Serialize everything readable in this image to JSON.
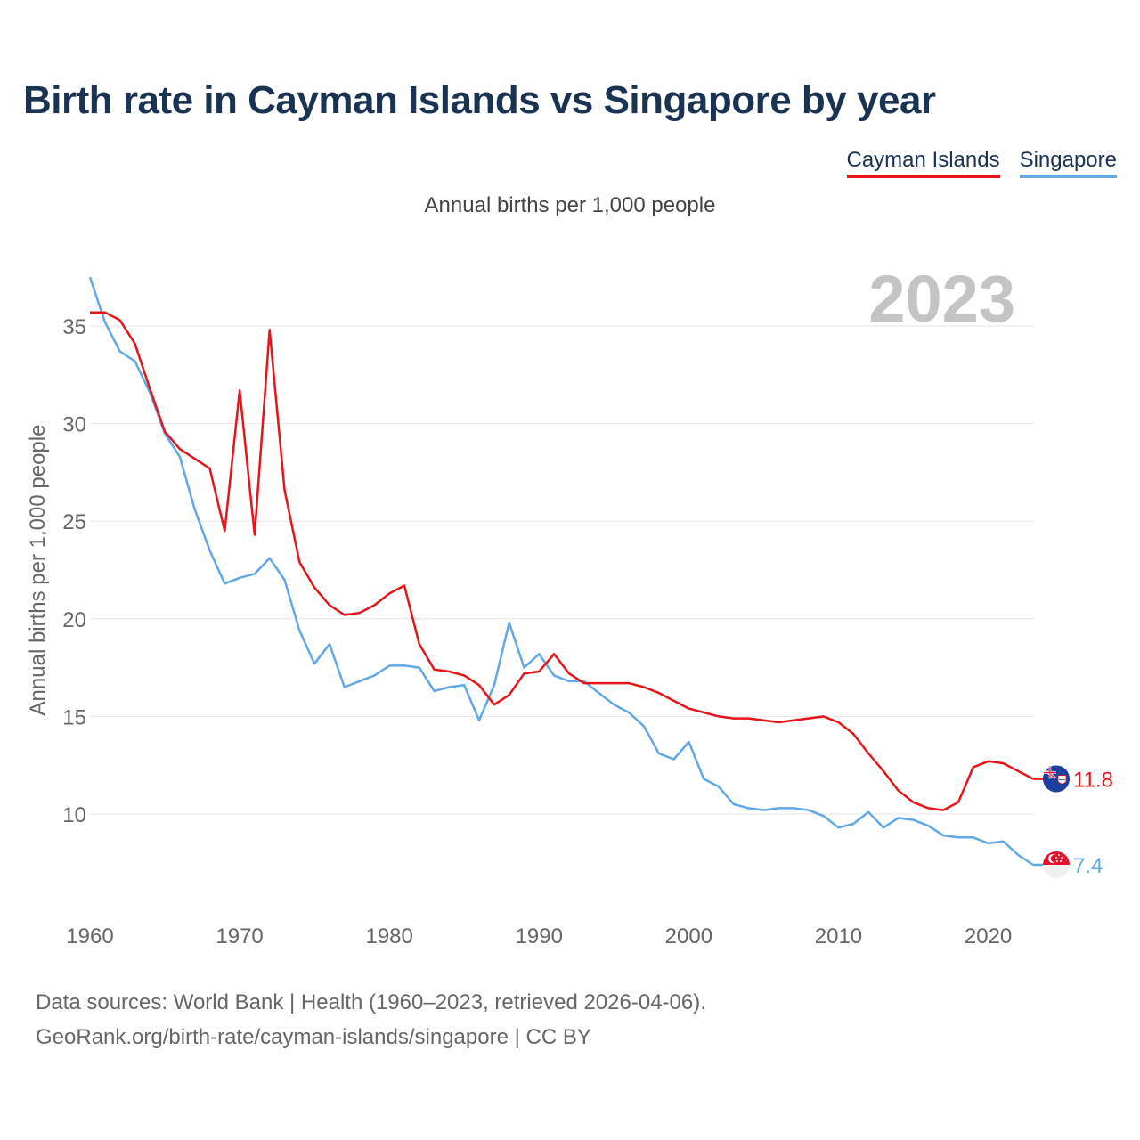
{
  "title": "Birth rate in Cayman Islands vs Singapore by year",
  "subtitle": "Annual births per 1,000 people",
  "year_watermark": "2023",
  "legend": [
    {
      "name": "Cayman Islands",
      "color": "#e8141a"
    },
    {
      "name": "Singapore",
      "color": "#62a8e5"
    }
  ],
  "footer": {
    "line1": "Data sources: World Bank | Health (1960–2023, retrieved 2026-04-06).",
    "line2": "GeoRank.org/birth-rate/cayman-islands/singapore | CC BY"
  },
  "chart_data": {
    "type": "line",
    "title": "Birth rate in Cayman Islands vs Singapore by year",
    "xlabel": "",
    "ylabel": "Annual births per 1,000 people",
    "xlim": [
      1960,
      2023
    ],
    "ylim": [
      5.3,
      38
    ],
    "x_ticks": [
      1960,
      1970,
      1980,
      1990,
      2000,
      2010,
      2020
    ],
    "y_ticks": [
      10,
      15,
      20,
      25,
      30,
      35
    ],
    "grid": true,
    "x": [
      1960,
      1961,
      1962,
      1963,
      1964,
      1965,
      1966,
      1967,
      1968,
      1969,
      1970,
      1971,
      1972,
      1973,
      1974,
      1975,
      1976,
      1977,
      1978,
      1979,
      1980,
      1981,
      1982,
      1983,
      1984,
      1985,
      1986,
      1987,
      1988,
      1989,
      1990,
      1991,
      1992,
      1993,
      1994,
      1995,
      1996,
      1997,
      1998,
      1999,
      2000,
      2001,
      2002,
      2003,
      2004,
      2005,
      2006,
      2007,
      2008,
      2009,
      2010,
      2011,
      2012,
      2013,
      2014,
      2015,
      2016,
      2017,
      2018,
      2019,
      2020,
      2021,
      2022,
      2023
    ],
    "series": [
      {
        "name": "Cayman Islands",
        "color": "#e8141a",
        "end_label": "11.8",
        "values": [
          35.7,
          35.7,
          35.3,
          34.1,
          31.8,
          29.6,
          28.7,
          28.2,
          27.7,
          24.5,
          31.7,
          24.3,
          34.8,
          26.6,
          22.9,
          21.6,
          20.7,
          20.2,
          20.3,
          20.7,
          21.3,
          21.7,
          18.7,
          17.4,
          17.3,
          17.1,
          16.6,
          15.6,
          16.1,
          17.2,
          17.3,
          18.2,
          17.2,
          16.7,
          16.7,
          16.7,
          16.7,
          16.5,
          16.2,
          15.8,
          15.4,
          15.2,
          15.0,
          14.9,
          14.9,
          14.8,
          14.7,
          14.8,
          14.9,
          15.0,
          14.7,
          14.1,
          13.1,
          12.2,
          11.2,
          10.6,
          10.3,
          10.2,
          10.6,
          12.4,
          12.7,
          12.6,
          12.2,
          11.8
        ]
      },
      {
        "name": "Singapore",
        "color": "#62a8e5",
        "end_label": "7.4",
        "values": [
          37.5,
          35.2,
          33.7,
          33.2,
          31.6,
          29.5,
          28.3,
          25.6,
          23.5,
          21.8,
          22.1,
          22.3,
          23.1,
          22.0,
          19.4,
          17.7,
          18.7,
          16.5,
          16.8,
          17.1,
          17.6,
          17.6,
          17.5,
          16.3,
          16.5,
          16.6,
          14.8,
          16.6,
          19.8,
          17.5,
          18.2,
          17.1,
          16.8,
          16.8,
          16.2,
          15.6,
          15.2,
          14.5,
          13.1,
          12.8,
          13.7,
          11.8,
          11.4,
          10.5,
          10.3,
          10.2,
          10.3,
          10.3,
          10.2,
          9.9,
          9.3,
          9.5,
          10.1,
          9.3,
          9.8,
          9.7,
          9.4,
          8.9,
          8.8,
          8.8,
          8.5,
          8.6,
          7.9,
          7.4
        ]
      }
    ]
  }
}
